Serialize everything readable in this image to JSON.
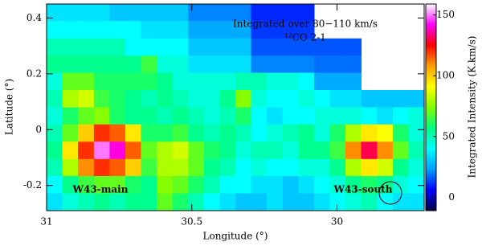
{
  "chart_data": {
    "type": "heatmap",
    "xlabel": "Longitude (°)",
    "ylabel": "Latitude (°)",
    "colorbar_label": "Integrated Intensity (K.km/s)",
    "annotations": [
      "Integrated over 80−110 km/s",
      "¹²CO 2-1",
      "W43-main",
      "W43-south"
    ],
    "xlim": [
      31,
      29.7
    ],
    "xticks": [
      31,
      30.5,
      30
    ],
    "ylim": [
      -0.29,
      0.45
    ],
    "yticks": [
      -0.2,
      0,
      0.2,
      0.4
    ],
    "clim": [
      -11,
      159
    ],
    "cticks": [
      0,
      50,
      100,
      150
    ],
    "colorscale": [
      "#000040",
      "#0000ff",
      "#00a0ff",
      "#00ffff",
      "#00ff80",
      "#80ff00",
      "#ffff00",
      "#ffa000",
      "#ff0000",
      "#ff00ff",
      "#ffffff"
    ],
    "x": [
      30.973,
      30.919,
      30.865,
      30.81,
      30.756,
      30.702,
      30.648,
      30.594,
      30.54,
      30.485,
      30.431,
      30.377,
      30.323,
      30.269,
      30.215,
      30.16,
      30.106,
      30.052,
      29.998,
      29.944,
      29.89,
      29.835,
      29.781,
      29.727
    ],
    "y": [
      0.419,
      0.358,
      0.296,
      0.234,
      0.173,
      0.111,
      0.049,
      -0.012,
      -0.074,
      -0.136,
      -0.197,
      -0.259
    ],
    "z": [
      [
        35,
        35,
        35,
        35,
        30,
        30,
        30,
        30,
        30,
        20,
        20,
        20,
        20,
        10,
        10,
        10,
        10,
        null,
        null,
        null,
        null,
        null,
        null,
        null
      ],
      [
        40,
        40,
        40,
        40,
        40,
        40,
        35,
        35,
        35,
        25,
        25,
        25,
        25,
        12,
        12,
        12,
        12,
        null,
        null,
        null,
        null,
        null,
        null,
        null
      ],
      [
        50,
        50,
        50,
        50,
        50,
        40,
        40,
        40,
        40,
        30,
        30,
        30,
        30,
        15,
        15,
        15,
        15,
        15,
        15,
        15,
        null,
        null,
        null,
        null
      ],
      [
        55,
        55,
        55,
        55,
        55,
        55,
        65,
        45,
        45,
        35,
        35,
        35,
        35,
        20,
        20,
        20,
        20,
        18,
        18,
        18,
        null,
        null,
        null,
        null
      ],
      [
        45,
        70,
        70,
        60,
        60,
        60,
        60,
        55,
        45,
        45,
        45,
        45,
        50,
        50,
        45,
        45,
        40,
        25,
        25,
        25,
        null,
        null,
        null,
        null
      ],
      [
        50,
        80,
        85,
        65,
        60,
        55,
        50,
        55,
        50,
        45,
        45,
        55,
        75,
        45,
        40,
        40,
        45,
        40,
        35,
        35,
        30,
        30,
        30,
        30
      ],
      [
        45,
        60,
        70,
        75,
        60,
        55,
        55,
        50,
        55,
        50,
        45,
        50,
        60,
        40,
        35,
        40,
        40,
        45,
        45,
        45,
        40,
        35,
        40,
        45
      ],
      [
        50,
        70,
        100,
        120,
        115,
        95,
        60,
        60,
        65,
        55,
        50,
        55,
        50,
        40,
        45,
        50,
        55,
        45,
        60,
        80,
        95,
        90,
        60,
        45
      ],
      [
        55,
        95,
        120,
        150,
        140,
        115,
        70,
        80,
        85,
        70,
        60,
        55,
        45,
        50,
        50,
        45,
        55,
        55,
        65,
        110,
        130,
        110,
        70,
        50
      ],
      [
        50,
        80,
        110,
        120,
        115,
        100,
        65,
        80,
        80,
        70,
        55,
        50,
        40,
        45,
        40,
        40,
        45,
        45,
        55,
        80,
        95,
        85,
        55,
        45
      ],
      [
        40,
        55,
        65,
        70,
        70,
        60,
        55,
        75,
        70,
        60,
        50,
        40,
        40,
        35,
        35,
        30,
        35,
        40,
        45,
        55,
        60,
        55,
        45,
        40
      ],
      [
        35,
        45,
        50,
        55,
        50,
        55,
        55,
        70,
        60,
        50,
        40,
        35,
        30,
        30,
        35,
        30,
        30,
        35,
        40,
        45,
        50,
        40,
        35,
        35
      ]
    ]
  }
}
